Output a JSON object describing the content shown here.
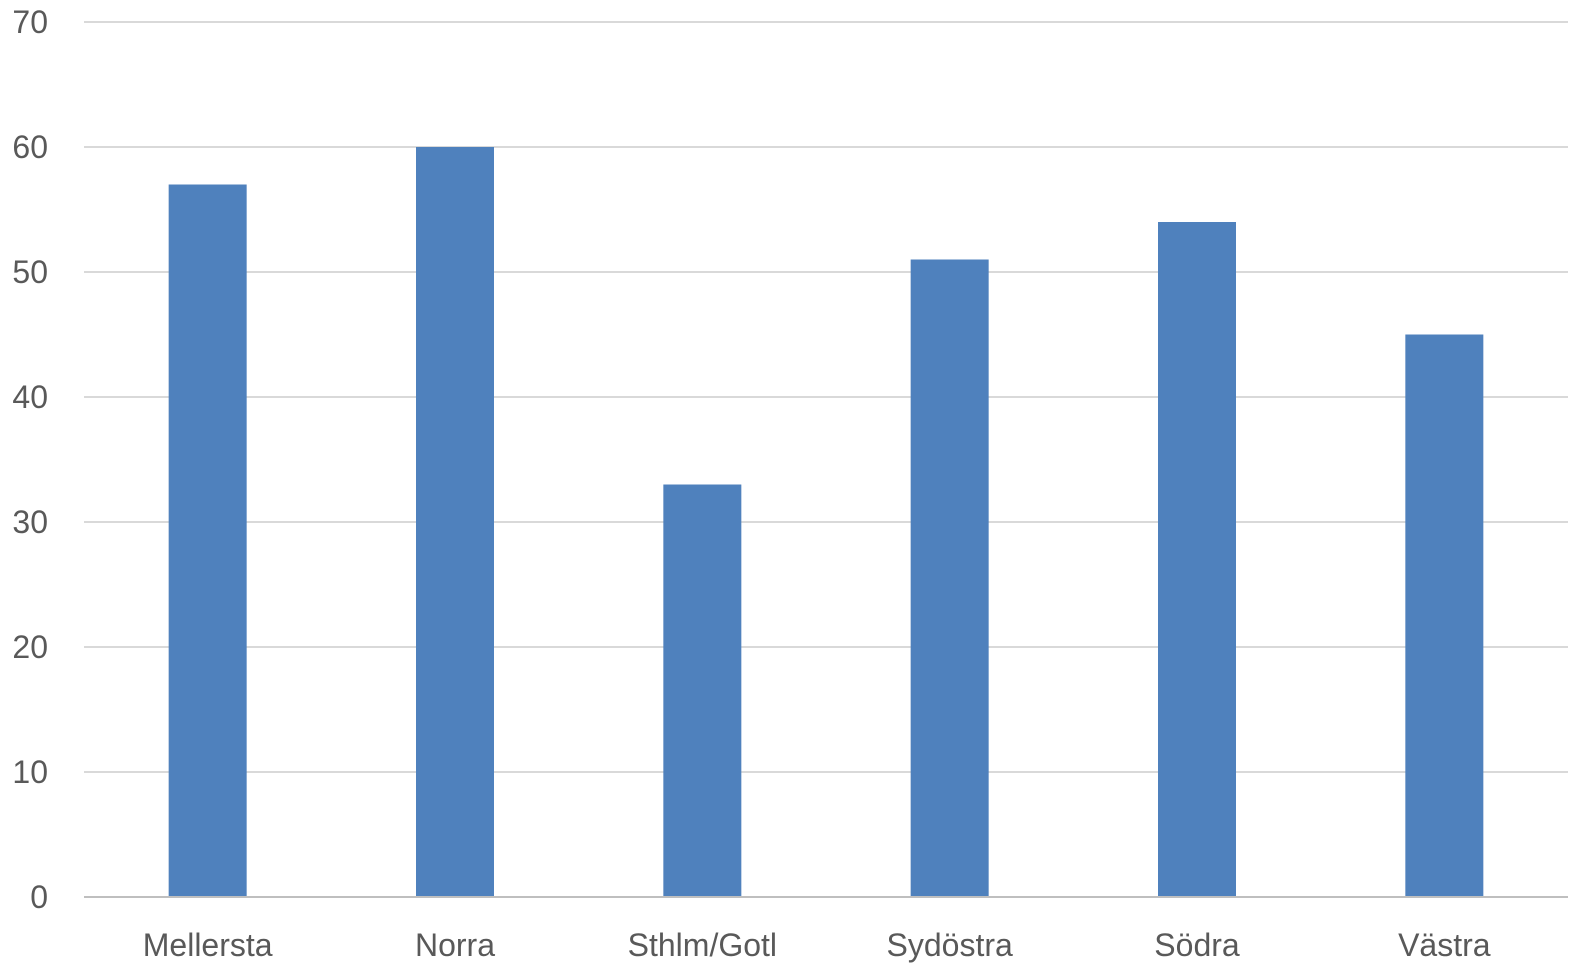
{
  "chart_data": {
    "type": "bar",
    "categories": [
      "Mellersta",
      "Norra",
      "Sthlm/Gotl",
      "Sydöstra",
      "Södra",
      "Västra"
    ],
    "series": [
      {
        "values": [
          57,
          60,
          33,
          51,
          54,
          45
        ]
      }
    ],
    "title": "",
    "xlabel": "",
    "ylabel": "",
    "ylim": [
      0,
      70
    ],
    "yticks": [
      "0",
      "10",
      "20",
      "30",
      "40",
      "50",
      "60",
      "70"
    ],
    "grid": true,
    "legend": "none"
  },
  "colors": {
    "bar": "#4f81bd",
    "grid": "#d9d9d9",
    "axis": "#bfbfbf",
    "text": "#595959"
  }
}
